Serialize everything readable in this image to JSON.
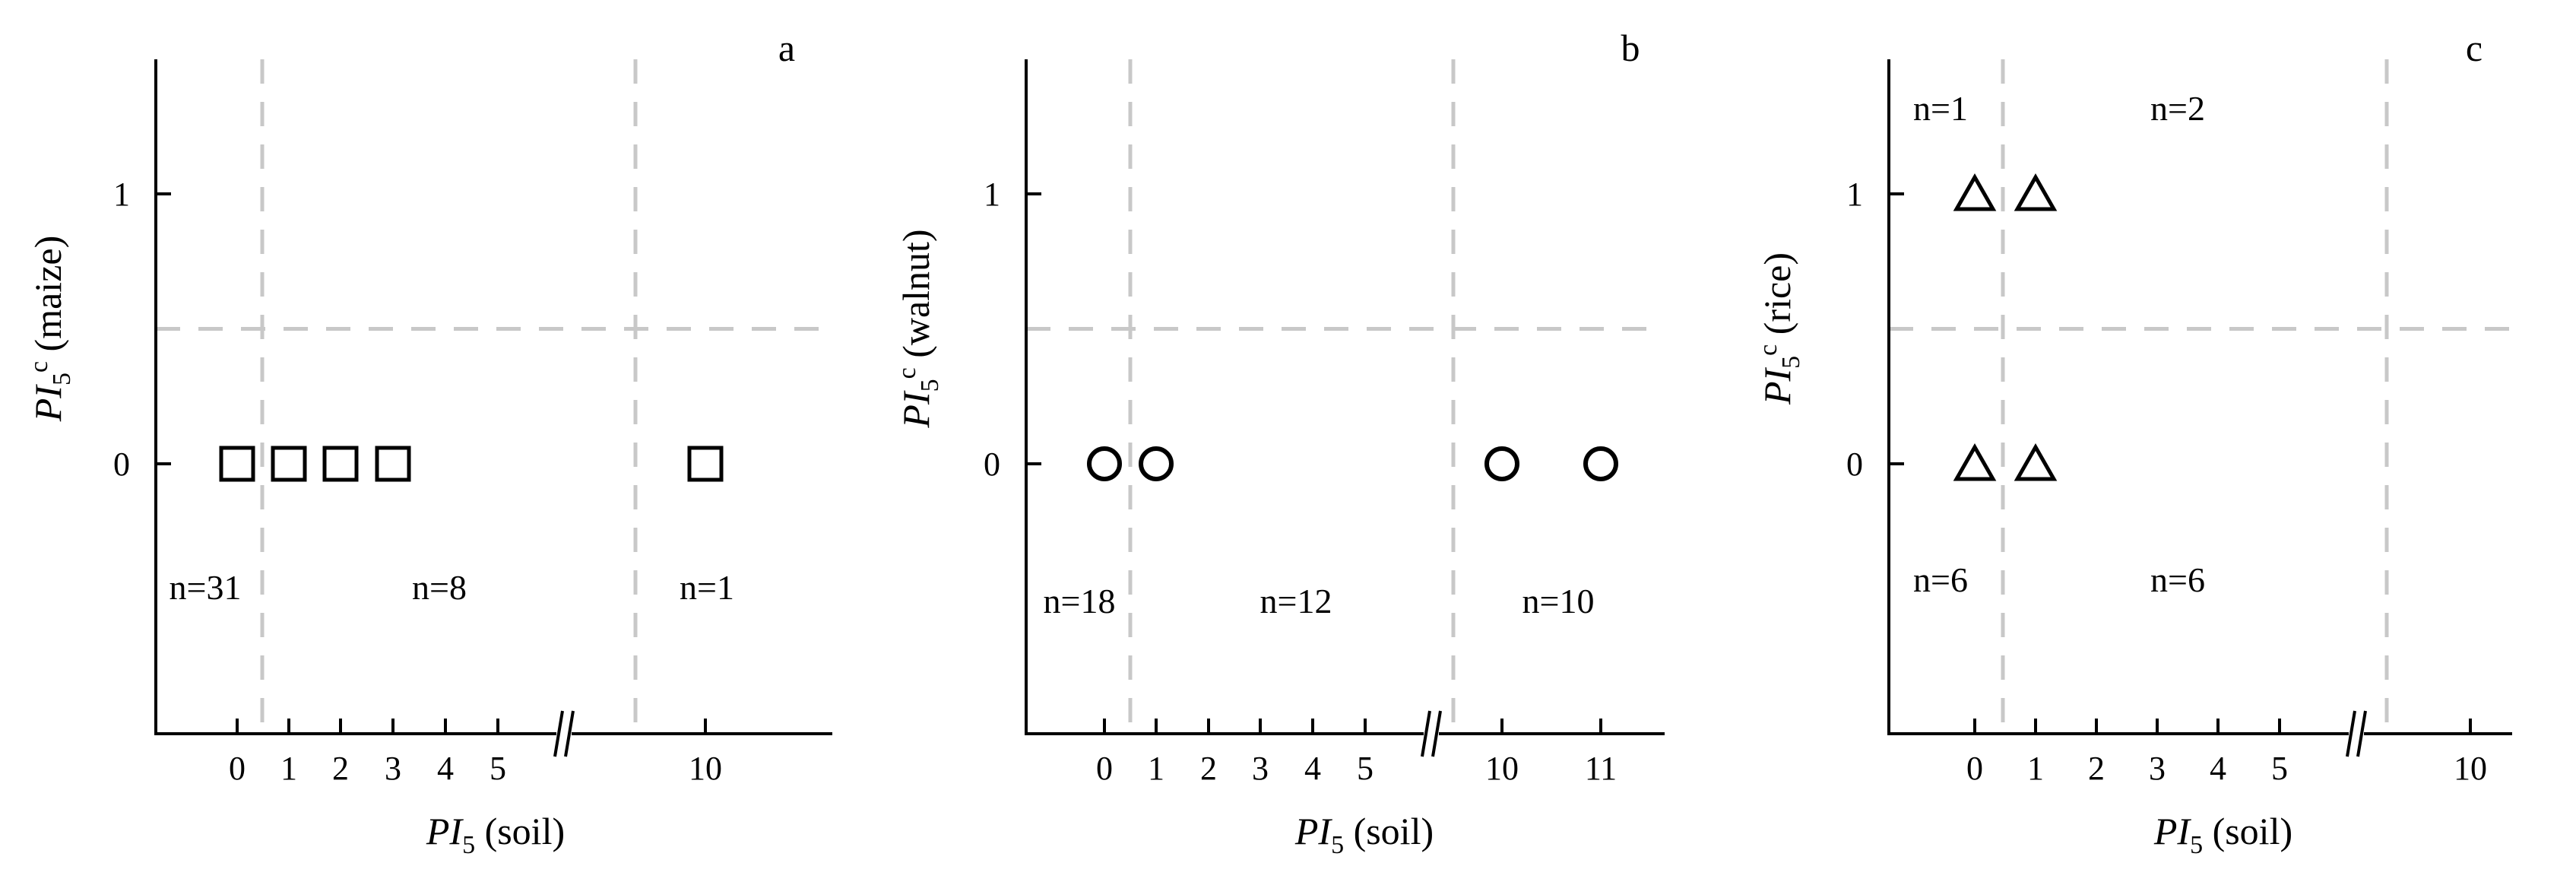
{
  "chart_data": [
    {
      "type": "scatter",
      "panel_label": "a",
      "marker": "square",
      "xlabel_italic": "PI",
      "xlabel_sub": "5",
      "xlabel_rest": " (soil)",
      "ylabel_italic": "PI",
      "ylabel_sub": "5",
      "ylabel_sup": "c",
      "ylabel_rest": " (maize)",
      "x_ticks": [
        "0",
        "1",
        "2",
        "3",
        "4",
        "5",
        "10"
      ],
      "x_tick_values": [
        0,
        1,
        2,
        3,
        4,
        5,
        10
      ],
      "y_ticks": [
        "0",
        "1"
      ],
      "y_tick_values": [
        0,
        1
      ],
      "axis_break": "between 5 and 10",
      "threshold_x": [
        0.5,
        8.5
      ],
      "threshold_y": 0.5,
      "points": [
        {
          "x": 0,
          "y": 0
        },
        {
          "x": 1,
          "y": 0
        },
        {
          "x": 2,
          "y": 0
        },
        {
          "x": 3,
          "y": 0
        },
        {
          "x": 10,
          "y": 0
        }
      ],
      "counts": [
        {
          "label": "n=31",
          "region": "lower-left"
        },
        {
          "label": "n=8",
          "region": "lower-middle"
        },
        {
          "label": "n=1",
          "region": "lower-right"
        }
      ]
    },
    {
      "type": "scatter",
      "panel_label": "b",
      "marker": "circle",
      "xlabel_italic": "PI",
      "xlabel_sub": "5",
      "xlabel_rest": " (soil)",
      "ylabel_italic": "PI",
      "ylabel_sub": "5",
      "ylabel_sup": "c",
      "ylabel_rest": " (walnut)",
      "x_ticks": [
        "0",
        "1",
        "2",
        "3",
        "4",
        "5",
        "10",
        "11"
      ],
      "x_tick_values": [
        0,
        1,
        2,
        3,
        4,
        5,
        10,
        11
      ],
      "y_ticks": [
        "0",
        "1"
      ],
      "y_tick_values": [
        0,
        1
      ],
      "axis_break": "between 5 and 10",
      "threshold_x": [
        0.5,
        9.5
      ],
      "threshold_y": 0.5,
      "points": [
        {
          "x": 0,
          "y": 0
        },
        {
          "x": 1,
          "y": 0
        },
        {
          "x": 10,
          "y": 0
        },
        {
          "x": 11,
          "y": 0
        }
      ],
      "counts": [
        {
          "label": "n=18",
          "region": "lower-left"
        },
        {
          "label": "n=12",
          "region": "lower-middle"
        },
        {
          "label": "n=10",
          "region": "lower-right"
        }
      ]
    },
    {
      "type": "scatter",
      "panel_label": "c",
      "marker": "triangle",
      "xlabel_italic": "PI",
      "xlabel_sub": "5",
      "xlabel_rest": " (soil)",
      "ylabel_italic": "PI",
      "ylabel_sub": "5",
      "ylabel_sup": "c",
      "ylabel_rest": " (rice)",
      "x_ticks": [
        "0",
        "1",
        "2",
        "3",
        "4",
        "5",
        "10"
      ],
      "x_tick_values": [
        0,
        1,
        2,
        3,
        4,
        5,
        10
      ],
      "y_ticks": [
        "0",
        "1"
      ],
      "y_tick_values": [
        0,
        1
      ],
      "axis_break": "between 5 and 10",
      "threshold_x": [
        0.5,
        7.5
      ],
      "threshold_y": 0.5,
      "points": [
        {
          "x": 0,
          "y": 1
        },
        {
          "x": 1,
          "y": 1
        },
        {
          "x": 0,
          "y": 0
        },
        {
          "x": 1,
          "y": 0
        }
      ],
      "counts": [
        {
          "label": "n=1",
          "region": "upper-left"
        },
        {
          "label": "n=2",
          "region": "upper-middle"
        },
        {
          "label": "n=6",
          "region": "lower-left"
        },
        {
          "label": "n=6",
          "region": "lower-middle"
        }
      ]
    }
  ],
  "style": {
    "axis_color": "#000000",
    "threshold_color": "#c8c8c8",
    "marker_stroke": "#000000"
  }
}
